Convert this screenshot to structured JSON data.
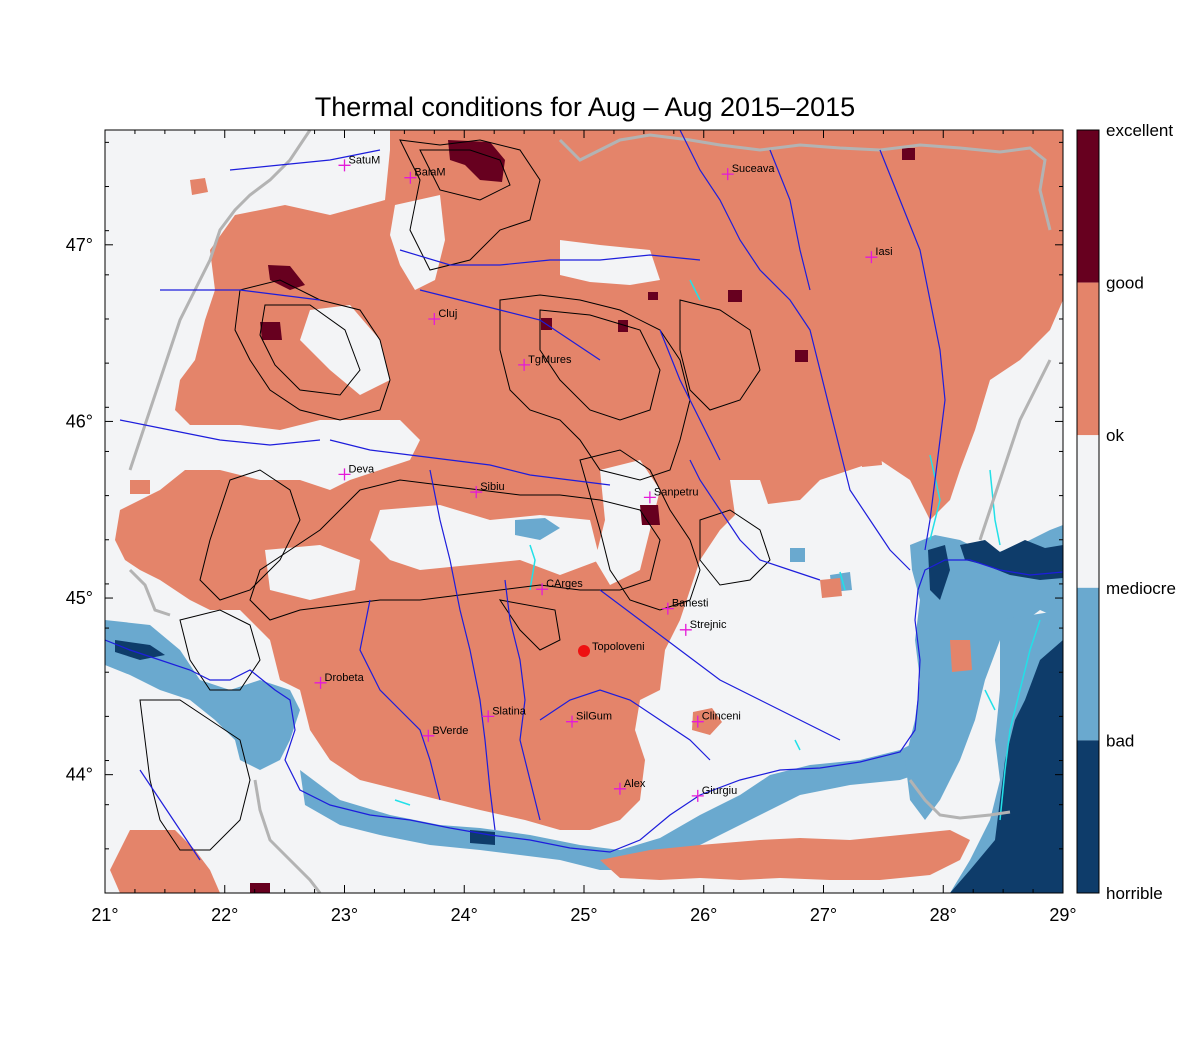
{
  "title": "Thermal conditions for Aug – Aug  2015–2015",
  "axes": {
    "x_ticks": [
      "21°",
      "22°",
      "23°",
      "24°",
      "25°",
      "26°",
      "27°",
      "28°",
      "29°"
    ],
    "y_ticks": [
      "47°",
      "46°",
      "45°",
      "44°"
    ],
    "lon_range": [
      21,
      29
    ],
    "lat_range": [
      43.33,
      47.65
    ]
  },
  "legend": {
    "classes": [
      {
        "label": "excellent",
        "color": "#67001f"
      },
      {
        "label": "good",
        "color": "#e4846a"
      },
      {
        "label": "ok",
        "color": "#f3f4f6"
      },
      {
        "label": "mediocre",
        "color": "#6aa9cf"
      },
      {
        "label": "bad",
        "color": "#0e3c6a"
      },
      {
        "label": "horrible",
        "color": ""
      }
    ]
  },
  "colors": {
    "good": "#e4846a",
    "ok": "#f3f4f6",
    "mediocre": "#6aa9cf",
    "bad": "#0e3c6a",
    "excellent": "#67001f",
    "river": "#1d1ddc",
    "border": "#b3b3b3",
    "lake": "#22e0e8",
    "station_marker": "#e41ad8",
    "highlight_point": "#ee1111"
  },
  "stations": [
    {
      "name": "SatuM",
      "lon": 23.0,
      "lat": 47.45
    },
    {
      "name": "BaiaM",
      "lon": 23.55,
      "lat": 47.38
    },
    {
      "name": "Suceava",
      "lon": 26.2,
      "lat": 47.4
    },
    {
      "name": "Iasi",
      "lon": 27.4,
      "lat": 46.93
    },
    {
      "name": "Cluj",
      "lon": 23.75,
      "lat": 46.58
    },
    {
      "name": "TgMures",
      "lon": 24.5,
      "lat": 46.32
    },
    {
      "name": "Deva",
      "lon": 23.0,
      "lat": 45.7
    },
    {
      "name": "Sibiu",
      "lon": 24.1,
      "lat": 45.6
    },
    {
      "name": "Sanpetru",
      "lon": 25.55,
      "lat": 45.57
    },
    {
      "name": "CArges",
      "lon": 24.65,
      "lat": 45.05
    },
    {
      "name": "Banesti",
      "lon": 25.7,
      "lat": 44.94
    },
    {
      "name": "Strejnic",
      "lon": 25.85,
      "lat": 44.82
    },
    {
      "name": "Drobeta",
      "lon": 22.8,
      "lat": 44.52
    },
    {
      "name": "Slatina",
      "lon": 24.2,
      "lat": 44.33
    },
    {
      "name": "SilGum",
      "lon": 24.9,
      "lat": 44.3
    },
    {
      "name": "BVerde",
      "lon": 23.7,
      "lat": 44.22
    },
    {
      "name": "Clinceni",
      "lon": 25.95,
      "lat": 44.3
    },
    {
      "name": "Alex",
      "lon": 25.3,
      "lat": 43.92
    },
    {
      "name": "Giurgiu",
      "lon": 25.95,
      "lat": 43.88
    }
  ],
  "highlight": {
    "name": "Topoloveni",
    "lon": 25.0,
    "lat": 44.7
  }
}
